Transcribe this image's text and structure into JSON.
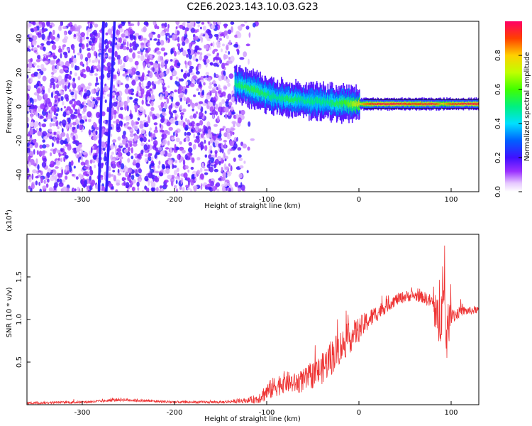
{
  "title": "C2E6.2023.143.10.03.G23",
  "chart_data": [
    {
      "type": "heatmap",
      "xlabel": "Height of straight line (km)",
      "ylabel": "Frequency (Hz)",
      "xlim": [
        -360,
        130
      ],
      "ylim": [
        -50,
        50
      ],
      "xticks": [
        "-300",
        "-200",
        "-100",
        "0",
        "100"
      ],
      "xtick_values": [
        -300,
        -200,
        -100,
        0,
        100
      ],
      "yticks": [
        "40",
        "20",
        "0",
        "-20",
        "-40"
      ],
      "ytick_values": [
        40,
        20,
        0,
        -20,
        -40
      ],
      "colorbar": {
        "label": "Normalized spectral amplitude",
        "range": [
          0,
          1
        ],
        "ticks": [
          "0.0",
          "0.2",
          "0.4",
          "0.6",
          "0.8"
        ],
        "tick_values": [
          0,
          0.2,
          0.4,
          0.6,
          0.8
        ],
        "colormap": "rainbow"
      },
      "ridge": {
        "x": [
          -135,
          -125,
          -115,
          -105,
          -95,
          -85,
          -75,
          -65,
          -55,
          -45,
          -35,
          -25,
          -15,
          -5,
          5,
          20,
          40,
          60,
          80,
          90,
          100,
          115,
          130
        ],
        "y": [
          13,
          12,
          10,
          8,
          6,
          5,
          4,
          4,
          3,
          3,
          2.5,
          2,
          2,
          1.5,
          1.5,
          1.5,
          1.5,
          1.5,
          1.5,
          1.5,
          1.5,
          1.5,
          1.5
        ],
        "amplitude": [
          0.5,
          0.55,
          0.55,
          0.55,
          0.5,
          0.5,
          0.55,
          0.5,
          0.5,
          0.5,
          0.5,
          0.55,
          0.6,
          0.7,
          0.85,
          0.95,
          0.95,
          0.9,
          0.95,
          0.8,
          0.9,
          0.95,
          0.95
        ]
      },
      "background_noise_x_range": [
        -360,
        -115
      ],
      "streaks": [
        {
          "x_top": -277,
          "x_bottom": -282
        },
        {
          "x_top": -265,
          "x_bottom": -274
        }
      ]
    },
    {
      "type": "line",
      "xlabel": "Height of straight line (km)",
      "ylabel": "SNR (10 * v/v)",
      "multiplier_label": "(x10",
      "multiplier_exp": "4",
      "xlim": [
        -360,
        130
      ],
      "ylim": [
        0,
        20000
      ],
      "xticks": [
        "-300",
        "-200",
        "-100",
        "0",
        "100"
      ],
      "xtick_values": [
        -300,
        -200,
        -100,
        0,
        100
      ],
      "yticks": [
        "0.5",
        "1.0",
        "1.5"
      ],
      "ytick_values": [
        5000,
        10000,
        15000
      ],
      "color": "#ee3333",
      "series": [
        {
          "x": [
            -360,
            -300,
            -280,
            -260,
            -200,
            -150,
            -120,
            -110,
            -100,
            -90,
            -80,
            -70,
            -60,
            -50,
            -40,
            -30,
            -20,
            -10,
            0,
            10,
            20,
            30,
            40,
            50,
            60,
            70,
            80,
            85,
            90,
            95,
            100,
            105,
            110,
            120,
            130
          ],
          "y": [
            200,
            300,
            400,
            600,
            300,
            300,
            500,
            700,
            1500,
            2200,
            2700,
            2500,
            2800,
            3500,
            4200,
            5600,
            6800,
            7800,
            8800,
            9900,
            10800,
            11600,
            12300,
            12700,
            12800,
            12600,
            12000,
            9000,
            14000,
            8000,
            11000,
            10500,
            11000,
            11000,
            11200
          ],
          "spread": [
            150,
            150,
            150,
            200,
            150,
            150,
            300,
            600,
            1100,
            1300,
            1300,
            1200,
            1400,
            1600,
            1800,
            2200,
            2000,
            1800,
            1500,
            1200,
            1000,
            800,
            700,
            700,
            600,
            700,
            900,
            3500,
            6000,
            3500,
            1500,
            800,
            600,
            500,
            400
          ]
        }
      ]
    }
  ]
}
